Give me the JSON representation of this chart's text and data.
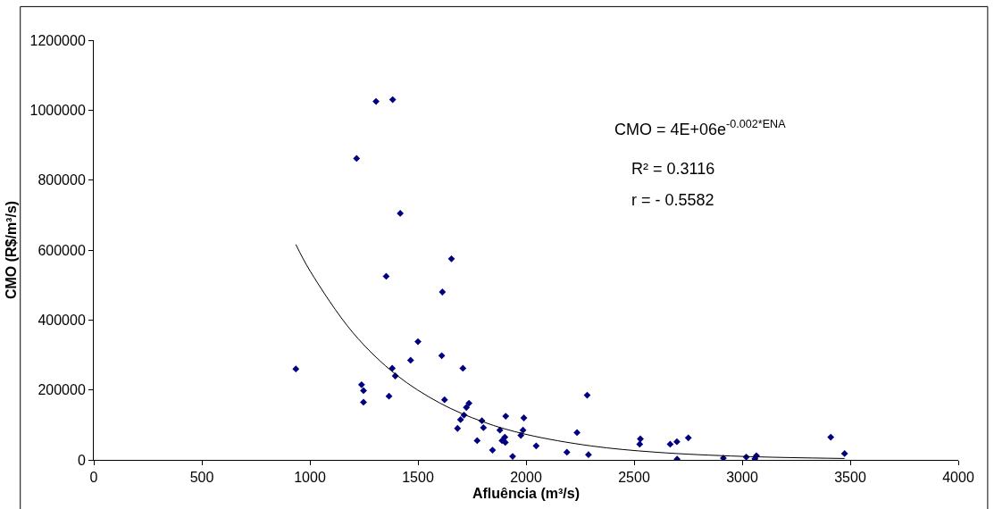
{
  "chart_data": {
    "type": "scatter",
    "xlabel": "Afluência (m³/s)",
    "ylabel": "CMO (R$/m³/s)",
    "xlim": [
      0,
      4000
    ],
    "xticks": [
      0,
      500,
      1000,
      1500,
      2000,
      2500,
      3000,
      3500,
      4000
    ],
    "ylim": [
      0,
      1200000
    ],
    "yticks": [
      0,
      200000,
      400000,
      600000,
      800000,
      1000000,
      1200000
    ],
    "grid": false,
    "marker": "diamond",
    "annotations": [
      "CMO = 4E+06e$^{-0.002*ENA}$",
      "R² = 0.3116",
      "r = - 0.5582"
    ],
    "series": [
      {
        "color": "#000080",
        "x": [
          935,
          1216,
          1306,
          1383,
          1418,
          1353,
          1613,
          1655,
          1610,
          1500,
          1466,
          1381,
          1395,
          1366,
          1239,
          1248,
          1248,
          1623,
          1708,
          1724,
          1736,
          1713,
          1697,
          1683,
          1796,
          1774,
          1803,
          1845,
          1879,
          1889,
          1902,
          1904,
          1906,
          1938,
          1976,
          1990,
          1986,
          2047,
          2189,
          2236,
          2283,
          2289,
          2529,
          2526,
          2667,
          2698,
          2699,
          2751,
          2913,
          3019,
          3059,
          3066,
          3410,
          3474
        ],
        "values": [
          260000,
          862000,
          1025000,
          1030000,
          705000,
          525000,
          480000,
          575000,
          298000,
          338000,
          285000,
          262000,
          240000,
          182000,
          215000,
          198000,
          165000,
          172000,
          262000,
          150000,
          162000,
          128000,
          115000,
          90000,
          112000,
          55000,
          92000,
          28000,
          85000,
          55000,
          65000,
          50000,
          125000,
          10000,
          70000,
          120000,
          85000,
          40000,
          22000,
          78000,
          185000,
          15000,
          60000,
          45000,
          45000,
          52000,
          2000,
          63000,
          5000,
          8000,
          3000,
          12000,
          65000,
          18000
        ]
      },
      {
        "type": "line",
        "color": "#000000",
        "marker": "none",
        "x": [
          935,
          1000,
          1200,
          1400,
          1600,
          1800,
          2000,
          2300,
          2600,
          3000,
          3474
        ],
        "values": [
          616000,
          541000,
          363000,
          243000,
          163000,
          109000,
          73000,
          40000,
          22000,
          10000,
          4000
        ]
      }
    ]
  }
}
